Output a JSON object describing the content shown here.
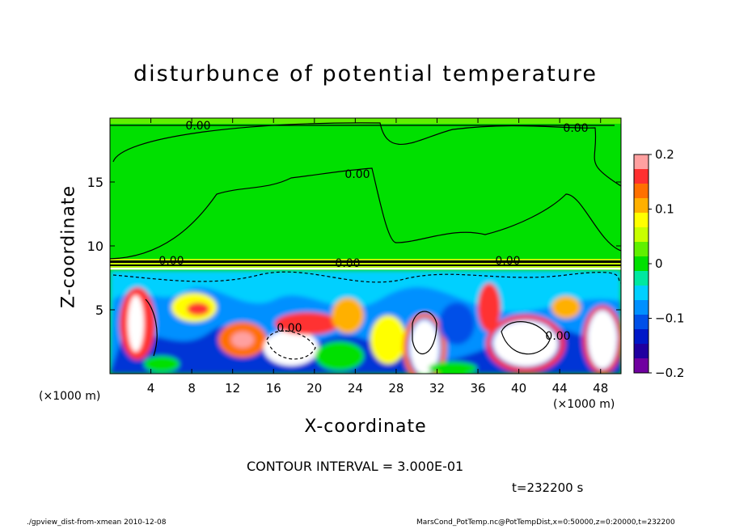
{
  "chart_data": {
    "type": "heatmap",
    "title": "disturbunce of potential temperature",
    "xlabel": "X-coordinate",
    "ylabel": "Z-coordinate",
    "x_unit_label": "(×1000 m)",
    "x_ticks": [
      4,
      8,
      12,
      16,
      20,
      24,
      28,
      32,
      36,
      40,
      44,
      48
    ],
    "y_ticks": [
      5,
      10,
      15
    ],
    "xlim": [
      0,
      50
    ],
    "ylim": [
      0,
      20
    ],
    "colorbar": {
      "ticks": [
        0.2,
        0.1,
        0,
        -0.1,
        -0.2
      ],
      "tick_labels": [
        "0.2",
        "0.1",
        "0",
        "−0.1",
        "−0.2"
      ],
      "range": [
        -0.2,
        0.2
      ],
      "colors": [
        "#ffa0a0",
        "#ff3030",
        "#ff7000",
        "#ffb000",
        "#ffff00",
        "#c8ff00",
        "#60f000",
        "#00e000",
        "#00e8a0",
        "#00d0ff",
        "#0090ff",
        "#0050e8",
        "#0018c8",
        "#2000a0",
        "#7000a0"
      ]
    },
    "contour_labels": [
      "0.00",
      "0.00",
      "0.00",
      "0.00",
      "0.00",
      "0.00",
      "0.00",
      "0.00"
    ],
    "contour_interval": "CONTOUR INTERVAL = 3.000E-01",
    "time": "t=232200 s"
  },
  "footer": {
    "left": "./gpview_dist-from-xmean  2010-12-08",
    "right": "MarsCond_PotTemp.nc@PotTempDist,x=0:50000,z=0:20000,t=232200"
  }
}
